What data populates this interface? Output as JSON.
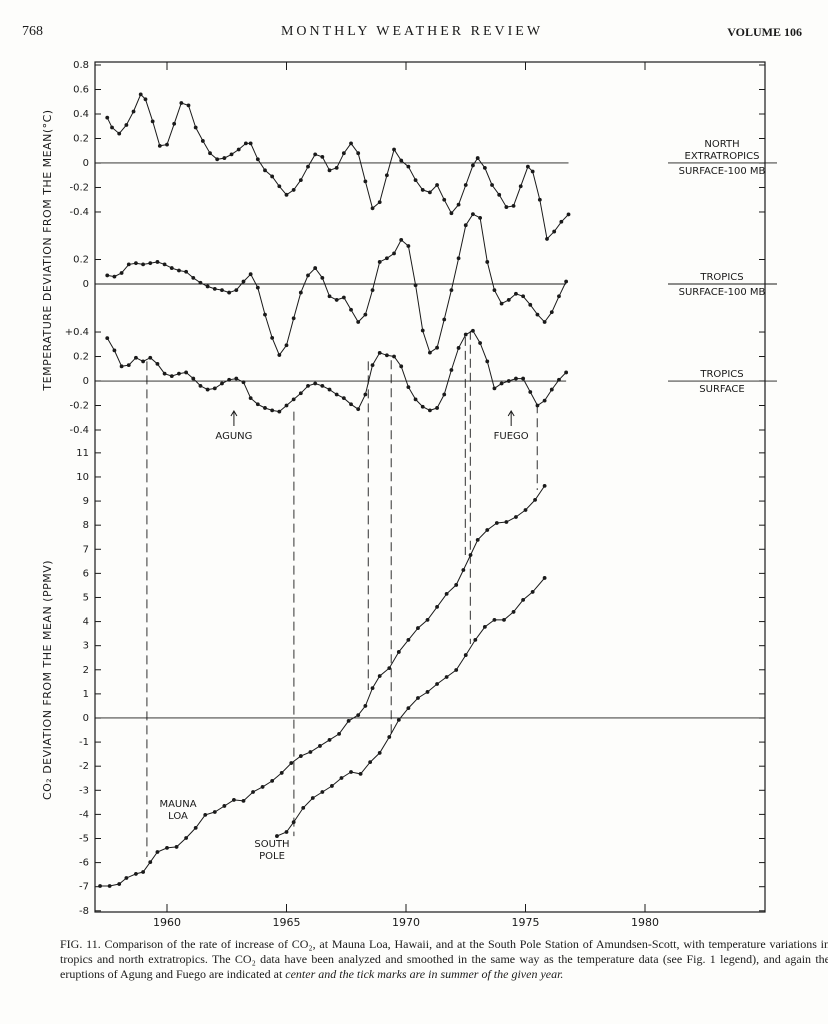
{
  "header": {
    "page": "768",
    "journal": "MONTHLY WEATHER REVIEW",
    "volume": "VOLUME 106"
  },
  "chart_data": [
    {
      "type": "line",
      "ylabel": "TEMPERATURE DEVIATION FROM THE MEAN(°C)",
      "xlim": [
        1957,
        1985
      ],
      "ylim": [
        -0.65,
        0.8
      ],
      "yticks": [
        0.8,
        0.6,
        0.4,
        0.2,
        0,
        -0.2,
        -0.4
      ],
      "series": [
        {
          "name": "NORTH EXTRATROPICS",
          "level": "SURFACE-100 MB",
          "color": "#1a1a1a",
          "x": [
            1957.5,
            1957.7,
            1958.0,
            1958.3,
            1958.6,
            1958.9,
            1959.1,
            1959.4,
            1959.7,
            1960.0,
            1960.3,
            1960.6,
            1960.9,
            1961.2,
            1961.5,
            1961.8,
            1962.1,
            1962.4,
            1962.7,
            1963.0,
            1963.3,
            1963.5,
            1963.8,
            1964.1,
            1964.4,
            1964.7,
            1965.0,
            1965.3,
            1965.6,
            1965.9,
            1966.2,
            1966.5,
            1966.8,
            1967.1,
            1967.4,
            1967.7,
            1968.0,
            1968.3,
            1968.6,
            1968.9,
            1969.2,
            1969.5,
            1969.8,
            1970.1,
            1970.4,
            1970.7,
            1971.0,
            1971.3,
            1971.6,
            1971.9,
            1972.2,
            1972.5,
            1972.8,
            1973.0,
            1973.3,
            1973.6,
            1973.9,
            1974.2,
            1974.5,
            1974.8,
            1975.1,
            1975.3,
            1975.6,
            1975.9,
            1976.2,
            1976.5,
            1976.8
          ],
          "values": [
            0.37,
            0.29,
            0.24,
            0.31,
            0.42,
            0.56,
            0.52,
            0.34,
            0.14,
            0.15,
            0.32,
            0.49,
            0.47,
            0.29,
            0.18,
            0.08,
            0.03,
            0.04,
            0.07,
            0.11,
            0.16,
            0.16,
            0.03,
            -0.06,
            -0.11,
            -0.19,
            -0.26,
            -0.22,
            -0.14,
            -0.03,
            0.07,
            0.05,
            -0.06,
            -0.04,
            0.08,
            0.16,
            0.08,
            -0.15,
            -0.37,
            -0.32,
            -0.1,
            0.11,
            0.02,
            -0.03,
            -0.14,
            -0.22,
            -0.24,
            -0.18,
            -0.3,
            -0.41,
            -0.34,
            -0.18,
            -0.02,
            0.04,
            -0.04,
            -0.18,
            -0.26,
            -0.36,
            -0.35,
            -0.19,
            -0.03,
            -0.07,
            -0.3,
            -0.62,
            -0.56,
            -0.48,
            -0.42
          ]
        }
      ]
    },
    {
      "type": "line",
      "xlim": [
        1957,
        1985
      ],
      "ylim": [
        -0.6,
        0.6
      ],
      "yticks": [
        0.2,
        0
      ],
      "series": [
        {
          "name": "TROPICS",
          "level": "SURFACE-100 MB",
          "color": "#1a1a1a",
          "x": [
            1957.5,
            1957.8,
            1958.1,
            1958.4,
            1958.7,
            1959.0,
            1959.3,
            1959.6,
            1959.9,
            1960.2,
            1960.5,
            1960.8,
            1961.1,
            1961.4,
            1961.7,
            1962.0,
            1962.3,
            1962.6,
            1962.9,
            1963.2,
            1963.5,
            1963.8,
            1964.1,
            1964.4,
            1964.7,
            1965.0,
            1965.3,
            1965.6,
            1965.9,
            1966.2,
            1966.5,
            1966.8,
            1967.1,
            1967.4,
            1967.7,
            1968.0,
            1968.3,
            1968.6,
            1968.9,
            1969.2,
            1969.5,
            1969.8,
            1970.1,
            1970.4,
            1970.7,
            1971.0,
            1971.3,
            1971.6,
            1971.9,
            1972.2,
            1972.5,
            1972.8,
            1973.1,
            1973.4,
            1973.7,
            1974.0,
            1974.3,
            1974.6,
            1974.9,
            1975.2,
            1975.5,
            1975.8,
            1976.1,
            1976.4,
            1976.7
          ],
          "values": [
            0.07,
            0.06,
            0.09,
            0.16,
            0.17,
            0.16,
            0.17,
            0.18,
            0.16,
            0.13,
            0.11,
            0.1,
            0.05,
            0.01,
            -0.02,
            -0.04,
            -0.05,
            -0.07,
            -0.05,
            0.02,
            0.08,
            -0.03,
            -0.25,
            -0.44,
            -0.58,
            -0.5,
            -0.28,
            -0.07,
            0.07,
            0.13,
            0.05,
            -0.1,
            -0.13,
            -0.11,
            -0.21,
            -0.31,
            -0.25,
            -0.05,
            0.18,
            0.21,
            0.25,
            0.36,
            0.31,
            -0.01,
            -0.38,
            -0.56,
            -0.52,
            -0.29,
            -0.05,
            0.21,
            0.48,
            0.57,
            0.54,
            0.18,
            -0.05,
            -0.16,
            -0.13,
            -0.08,
            -0.1,
            -0.17,
            -0.25,
            -0.31,
            -0.23,
            -0.1,
            0.02
          ]
        }
      ]
    },
    {
      "type": "line",
      "xlim": [
        1957,
        1985
      ],
      "ylim": [
        -0.5,
        0.45
      ],
      "yticks": [
        {
          "value": 0.4,
          "label": "+0.4"
        },
        0.2,
        0,
        -0.2,
        -0.4
      ],
      "series": [
        {
          "name": "TROPICS",
          "level": "SURFACE",
          "color": "#1a1a1a",
          "x": [
            1957.5,
            1957.8,
            1958.1,
            1958.4,
            1958.7,
            1959.0,
            1959.3,
            1959.6,
            1959.9,
            1960.2,
            1960.5,
            1960.8,
            1961.1,
            1961.4,
            1961.7,
            1962.0,
            1962.3,
            1962.6,
            1962.9,
            1963.2,
            1963.5,
            1963.8,
            1964.1,
            1964.4,
            1964.7,
            1965.0,
            1965.3,
            1965.6,
            1965.9,
            1966.2,
            1966.5,
            1966.8,
            1967.1,
            1967.4,
            1967.7,
            1968.0,
            1968.3,
            1968.6,
            1968.9,
            1969.2,
            1969.5,
            1969.8,
            1970.1,
            1970.4,
            1970.7,
            1971.0,
            1971.3,
            1971.6,
            1971.9,
            1972.2,
            1972.5,
            1972.8,
            1973.1,
            1973.4,
            1973.7,
            1974.0,
            1974.3,
            1974.6,
            1974.9,
            1975.2,
            1975.5,
            1975.8,
            1976.1,
            1976.4,
            1976.7
          ],
          "values": [
            0.35,
            0.25,
            0.12,
            0.13,
            0.19,
            0.16,
            0.19,
            0.14,
            0.06,
            0.04,
            0.06,
            0.07,
            0.02,
            -0.04,
            -0.07,
            -0.06,
            -0.02,
            0.01,
            0.02,
            -0.01,
            -0.14,
            -0.19,
            -0.22,
            -0.24,
            -0.25,
            -0.2,
            -0.15,
            -0.1,
            -0.04,
            -0.02,
            -0.04,
            -0.07,
            -0.11,
            -0.14,
            -0.19,
            -0.23,
            -0.11,
            0.13,
            0.23,
            0.21,
            0.2,
            0.12,
            -0.05,
            -0.15,
            -0.21,
            -0.24,
            -0.22,
            -0.11,
            0.09,
            0.27,
            0.38,
            0.41,
            0.31,
            0.16,
            -0.06,
            -0.02,
            0,
            0.02,
            0.02,
            -0.09,
            -0.2,
            -0.16,
            -0.07,
            0.01,
            0.07
          ]
        }
      ],
      "annotations": [
        {
          "text": "AGUNG",
          "x": 1962.8
        },
        {
          "text": "FUEGO",
          "x": 1974.4
        }
      ],
      "connectors": [
        {
          "x": 1959.16,
          "from": 0.16,
          "to": -5.77
        },
        {
          "x": 1965.31,
          "from": -0.25,
          "to": -4.9
        },
        {
          "x": 1968.42,
          "from": 0.16,
          "to": 1.16
        },
        {
          "x": 1969.38,
          "from": 0.17,
          "to": -0.83
        },
        {
          "x": 1972.48,
          "from": 0.36,
          "to": 6.76
        },
        {
          "x": 1972.69,
          "from": 0.41,
          "to": 3.07
        },
        {
          "x": 1975.49,
          "from": -0.19,
          "to": 9.46
        }
      ]
    },
    {
      "type": "line",
      "ylabel": "CO₂ DEVIATION FROM THE MEAN (PPMV)",
      "xlim": [
        1957,
        1985
      ],
      "ylim": [
        -8,
        11.6
      ],
      "yticks": [
        11,
        10,
        9,
        8,
        7,
        6,
        5,
        4,
        3,
        2,
        1,
        0,
        -1,
        -2,
        -3,
        -4,
        -5,
        -6,
        -7,
        -8
      ],
      "xticks": [
        1960,
        1965,
        1970,
        1975,
        1980
      ],
      "series": [
        {
          "name": "MAUNA LOA",
          "color": "#1a1a1a",
          "x": [
            1957.2,
            1957.6,
            1958.0,
            1958.3,
            1958.7,
            1959.0,
            1959.3,
            1959.6,
            1960.0,
            1960.4,
            1960.8,
            1961.2,
            1961.6,
            1962.0,
            1962.4,
            1962.8,
            1963.2,
            1963.6,
            1964.0,
            1964.4,
            1964.8,
            1965.2,
            1965.6,
            1966.0,
            1966.4,
            1966.8,
            1967.2,
            1967.6,
            1968.0,
            1968.3,
            1968.6,
            1968.9,
            1969.3,
            1969.7,
            1970.1,
            1970.5,
            1970.9,
            1971.3,
            1971.7,
            1972.1,
            1972.4,
            1972.7,
            1973.0,
            1973.4,
            1973.8,
            1974.2,
            1974.6,
            1975.0,
            1975.4,
            1975.8
          ],
          "values": [
            -6.97,
            -6.97,
            -6.89,
            -6.64,
            -6.47,
            -6.39,
            -5.98,
            -5.56,
            -5.39,
            -5.35,
            -4.98,
            -4.56,
            -4.02,
            -3.9,
            -3.65,
            -3.4,
            -3.44,
            -3.07,
            -2.86,
            -2.61,
            -2.28,
            -1.87,
            -1.58,
            -1.41,
            -1.16,
            -0.91,
            -0.66,
            -0.12,
            0.12,
            0.5,
            1.24,
            1.74,
            2.07,
            2.74,
            3.24,
            3.73,
            4.07,
            4.61,
            5.15,
            5.52,
            6.14,
            6.76,
            7.39,
            7.8,
            8.09,
            8.13,
            8.34,
            8.63,
            9.05,
            9.63
          ]
        },
        {
          "name": "SOUTH POLE",
          "color": "#1a1a1a",
          "x": [
            1964.6,
            1965.0,
            1965.3,
            1965.7,
            1966.1,
            1966.5,
            1966.9,
            1967.3,
            1967.7,
            1968.1,
            1968.5,
            1968.9,
            1969.3,
            1969.7,
            1970.1,
            1970.5,
            1970.9,
            1971.3,
            1971.7,
            1972.1,
            1972.5,
            1972.9,
            1973.3,
            1973.7,
            1974.1,
            1974.5,
            1974.9,
            1975.3,
            1975.8
          ],
          "values": [
            -4.9,
            -4.73,
            -4.32,
            -3.73,
            -3.32,
            -3.07,
            -2.82,
            -2.49,
            -2.24,
            -2.32,
            -1.83,
            -1.45,
            -0.79,
            -0.08,
            0.41,
            0.83,
            1.08,
            1.41,
            1.7,
            1.99,
            2.61,
            3.24,
            3.78,
            4.07,
            4.07,
            4.4,
            4.9,
            5.23,
            5.81
          ]
        }
      ]
    }
  ],
  "caption": {
    "label": "FIG. 11.",
    "text": "Comparison of the rate of increase of CO₂, at Mauna Loa, Hawaii, and at the South Pole Station of Amundsen-Scott, with temperature variations in tropics and north extratropics. The CO₂ data have been analyzed and smoothed in the same way as the temperature data (see Fig. 1 legend), and again the eruptions of Agung and Fuego are indicated at",
    "italic": "center and the tick marks are in summer of the given year."
  }
}
